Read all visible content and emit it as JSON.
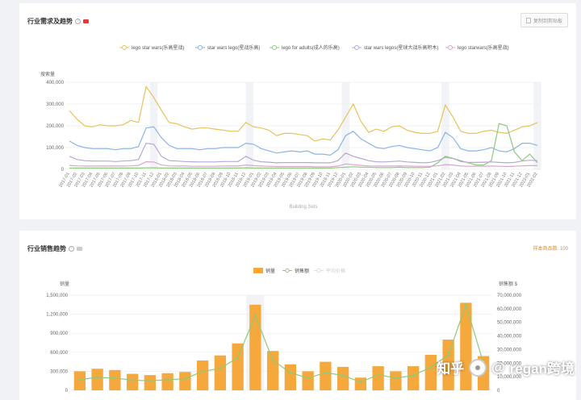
{
  "demand_card": {
    "title": "行业需求及趋势",
    "copy_button_label": "复制到剪贴板",
    "xlabel": "Building Sets"
  },
  "sales_card": {
    "title": "行业销售趋势",
    "sample_count": "样本商品数: 100"
  },
  "watermark": {
    "zhihu": "知乎",
    "at": "@",
    "author": "regan跨境"
  },
  "colors": {
    "s1": "#e8c25a",
    "s2": "#8ab4e6",
    "s3": "#8fc97a",
    "s4": "#b9a6d6",
    "s5": "#d9a6d0",
    "bar": "#f5a83c",
    "sales_line": "#8fc97a"
  },
  "chart_data": [
    {
      "type": "line",
      "ylabel": "搜索量",
      "ylim": [
        0,
        400000
      ],
      "yticks": [
        "0",
        "100,000",
        "200,000",
        "300,000",
        "400,000"
      ],
      "grid": true,
      "legend_position": "top",
      "x": [
        "2017-01",
        "2017-02",
        "2017-03",
        "2017-04",
        "2017-05",
        "2017-06",
        "2017-07",
        "2017-08",
        "2017-09",
        "2017-10",
        "2017-11",
        "2017-12",
        "2018-01",
        "2018-02",
        "2018-03",
        "2018-04",
        "2018-05",
        "2018-06",
        "2018-07",
        "2018-08",
        "2018-09",
        "2018-10",
        "2018-11",
        "2018-12",
        "2019-01",
        "2019-02",
        "2019-03",
        "2019-04",
        "2019-05",
        "2019-06",
        "2019-07",
        "2019-08",
        "2019-09",
        "2019-10",
        "2019-11",
        "2019-12",
        "2020-01",
        "2020-02",
        "2020-03",
        "2020-04",
        "2020-05",
        "2020-06",
        "2020-07",
        "2020-08",
        "2020-09",
        "2020-10",
        "2020-11",
        "2020-12",
        "2021-01",
        "2021-02",
        "2021-03",
        "2021-04",
        "2021-05",
        "2021-06",
        "2021-07",
        "2021-08",
        "2021-09",
        "2021-10",
        "2021-11",
        "2021-12",
        "2022-01",
        "2022-02"
      ],
      "series": [
        {
          "name": "lego star wars(乐高星战)",
          "color_key": "s1",
          "values": [
            270000,
            230000,
            200000,
            195000,
            205000,
            200000,
            200000,
            205000,
            225000,
            215000,
            380000,
            330000,
            270000,
            215000,
            210000,
            195000,
            185000,
            190000,
            190000,
            185000,
            180000,
            175000,
            175000,
            215000,
            195000,
            190000,
            180000,
            155000,
            165000,
            165000,
            160000,
            155000,
            130000,
            140000,
            135000,
            180000,
            240000,
            300000,
            220000,
            170000,
            185000,
            175000,
            195000,
            200000,
            180000,
            170000,
            165000,
            165000,
            175000,
            295000,
            240000,
            175000,
            165000,
            165000,
            175000,
            180000,
            170000,
            165000,
            180000,
            195000,
            200000,
            215000
          ]
        },
        {
          "name": "star wars lego(星战乐高)",
          "color_key": "s2",
          "values": [
            130000,
            110000,
            100000,
            95000,
            95000,
            95000,
            90000,
            95000,
            95000,
            105000,
            190000,
            195000,
            145000,
            110000,
            95000,
            95000,
            95000,
            90000,
            95000,
            95000,
            100000,
            100000,
            100000,
            120000,
            115000,
            95000,
            85000,
            75000,
            80000,
            85000,
            80000,
            85000,
            70000,
            70000,
            65000,
            90000,
            155000,
            175000,
            140000,
            120000,
            100000,
            95000,
            105000,
            110000,
            100000,
            95000,
            90000,
            85000,
            100000,
            170000,
            145000,
            95000,
            85000,
            85000,
            90000,
            100000,
            85000,
            80000,
            95000,
            120000,
            120000,
            110000
          ]
        },
        {
          "name": "lego for adults(成人的乐高)",
          "color_key": "s3",
          "values": [
            6000,
            6000,
            6000,
            6000,
            6000,
            6000,
            6000,
            6000,
            6000,
            6000,
            7000,
            7000,
            6000,
            6000,
            6000,
            6000,
            6000,
            6000,
            6000,
            6000,
            6000,
            6000,
            6000,
            7000,
            6000,
            6000,
            6000,
            6000,
            6000,
            6000,
            6000,
            6000,
            6000,
            6000,
            6000,
            8000,
            10000,
            12000,
            10000,
            10000,
            8000,
            8000,
            8000,
            10000,
            8000,
            8000,
            8000,
            10000,
            30000,
            60000,
            50000,
            40000,
            30000,
            20000,
            20000,
            40000,
            210000,
            200000,
            80000,
            40000,
            70000,
            30000
          ]
        },
        {
          "name": "star wars legos(星球大战乐高积木)",
          "color_key": "s4",
          "values": [
            60000,
            45000,
            40000,
            38000,
            38000,
            38000,
            36000,
            38000,
            40000,
            45000,
            120000,
            115000,
            60000,
            40000,
            38000,
            36000,
            35000,
            34000,
            34000,
            34000,
            36000,
            36000,
            36000,
            60000,
            42000,
            35000,
            33000,
            30000,
            31000,
            31000,
            31000,
            31000,
            30000,
            30000,
            30000,
            40000,
            75000,
            60000,
            50000,
            40000,
            35000,
            34000,
            36000,
            38000,
            34000,
            32000,
            30000,
            32000,
            40000,
            55000,
            50000,
            36000,
            32000,
            32000,
            33000,
            34000,
            32000,
            30000,
            32000,
            38000,
            42000,
            40000
          ]
        },
        {
          "name": "lego starwars(乐高星战)",
          "color_key": "s5",
          "values": [
            18000,
            16000,
            15000,
            15000,
            15000,
            15000,
            15000,
            15000,
            16000,
            18000,
            35000,
            34000,
            20000,
            16000,
            15000,
            15000,
            14000,
            14000,
            14000,
            14000,
            15000,
            15000,
            15000,
            20000,
            17000,
            15000,
            14000,
            13000,
            13000,
            13000,
            13000,
            13000,
            12000,
            12000,
            12000,
            15000,
            25000,
            22000,
            18000,
            16000,
            15000,
            15000,
            15000,
            16000,
            15000,
            14000,
            14000,
            14000,
            16000,
            22000,
            20000,
            15000,
            14000,
            14000,
            14000,
            15000,
            14000,
            13000,
            14000,
            16000,
            17000,
            17000
          ]
        }
      ]
    },
    {
      "type": "bar",
      "ylabel_left": "销量",
      "ylabel_right": "销售额 $",
      "ylim_left": [
        0,
        1500000
      ],
      "ylim_right": [
        0,
        70000000
      ],
      "yticks_left": [
        "0",
        "300,000",
        "600,000",
        "900,000",
        "1,200,000",
        "1,500,000"
      ],
      "yticks_right": [
        "0",
        "10,000,000",
        "20,000,000",
        "30,000,000",
        "40,000,000",
        "50,000,000",
        "60,000,000",
        "70,000,000"
      ],
      "grid": true,
      "legend_position": "top",
      "legend": [
        "销量",
        "销售额",
        "平均价格"
      ],
      "categories_count": 24,
      "series": [
        {
          "name": "销量",
          "color_key": "bar",
          "values": [
            300000,
            340000,
            320000,
            260000,
            240000,
            270000,
            290000,
            470000,
            550000,
            740000,
            1350000,
            620000,
            410000,
            300000,
            450000,
            370000,
            200000,
            380000,
            300000,
            380000,
            560000,
            800000,
            1380000,
            540000
          ]
        },
        {
          "name": "销售额",
          "color_key": "sales_line",
          "values": [
            8000000,
            9500000,
            9000000,
            7500000,
            7000000,
            7800000,
            8500000,
            14000000,
            16000000,
            24000000,
            55000000,
            22000000,
            13000000,
            9000000,
            13000000,
            11000000,
            6000000,
            11500000,
            9000000,
            11000000,
            17000000,
            26000000,
            63000000,
            20000000
          ]
        }
      ]
    }
  ]
}
